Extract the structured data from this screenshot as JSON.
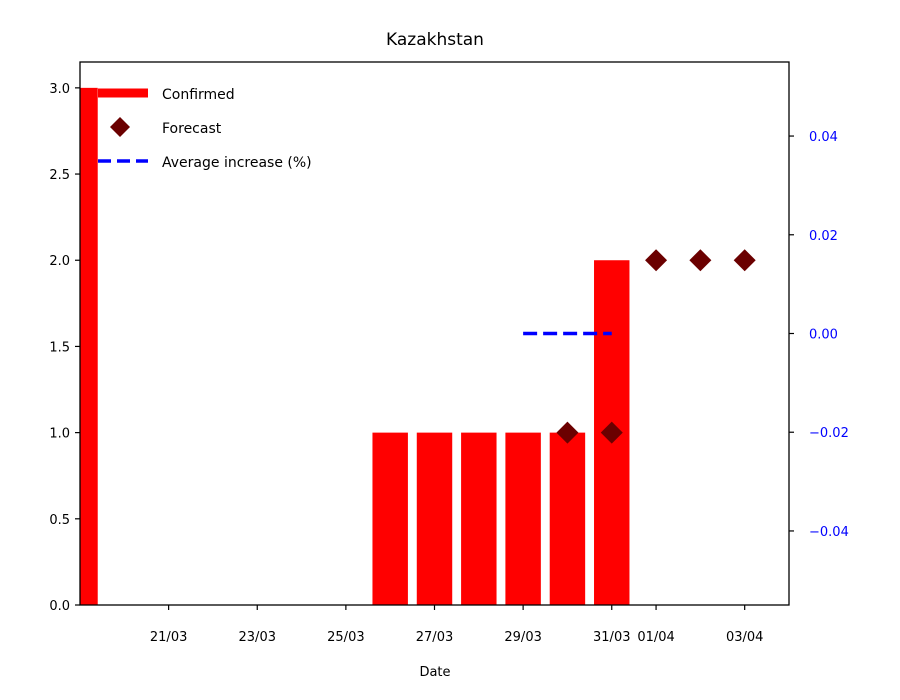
{
  "chart_data": {
    "type": "bar",
    "title": "Kazakhstan",
    "xlabel": "Date",
    "ylabel": "",
    "ylim": [
      0,
      3.15
    ],
    "yticks": [
      0.0,
      0.5,
      1.0,
      1.5,
      2.0,
      2.5,
      3.0
    ],
    "ytick_labels": [
      "0.0",
      "0.5",
      "1.0",
      "1.5",
      "2.0",
      "2.5",
      "3.0"
    ],
    "y2lim": [
      -0.055,
      0.055
    ],
    "y2ticks": [
      -0.04,
      -0.02,
      0.0,
      0.02,
      0.04
    ],
    "y2tick_labels": [
      "−0.04",
      "−0.02",
      "0.00",
      "0.02",
      "0.04"
    ],
    "xticks": [
      "21/03",
      "23/03",
      "25/03",
      "27/03",
      "29/03",
      "31/03",
      "01/04",
      "03/04"
    ],
    "x_range": [
      "2020-03-19",
      "2020-04-04"
    ],
    "legend": {
      "location": "top-left",
      "entries": [
        "Confirmed",
        "Forecast",
        "Average increase (%)"
      ]
    },
    "series": [
      {
        "name": "Confirmed",
        "kind": "bar",
        "color": "#ff0000",
        "points": [
          {
            "date": "2020-03-19",
            "value": 3
          },
          {
            "date": "2020-03-26",
            "value": 1
          },
          {
            "date": "2020-03-27",
            "value": 1
          },
          {
            "date": "2020-03-28",
            "value": 1
          },
          {
            "date": "2020-03-29",
            "value": 1
          },
          {
            "date": "2020-03-30",
            "value": 1
          },
          {
            "date": "2020-03-31",
            "value": 2
          }
        ]
      },
      {
        "name": "Forecast",
        "kind": "scatter",
        "marker": "diamond",
        "color": "#6b0000",
        "points": [
          {
            "date": "2020-03-30",
            "value": 1
          },
          {
            "date": "2020-03-31",
            "value": 1
          },
          {
            "date": "2020-04-01",
            "value": 2
          },
          {
            "date": "2020-04-02",
            "value": 2
          },
          {
            "date": "2020-04-03",
            "value": 2
          }
        ]
      },
      {
        "name": "Average increase (%)",
        "kind": "line",
        "axis": "right",
        "style": "dashed",
        "color": "#0000ff",
        "points": [
          {
            "date": "2020-03-29",
            "value": 0.0
          },
          {
            "date": "2020-03-31",
            "value": 0.0
          }
        ]
      }
    ]
  }
}
